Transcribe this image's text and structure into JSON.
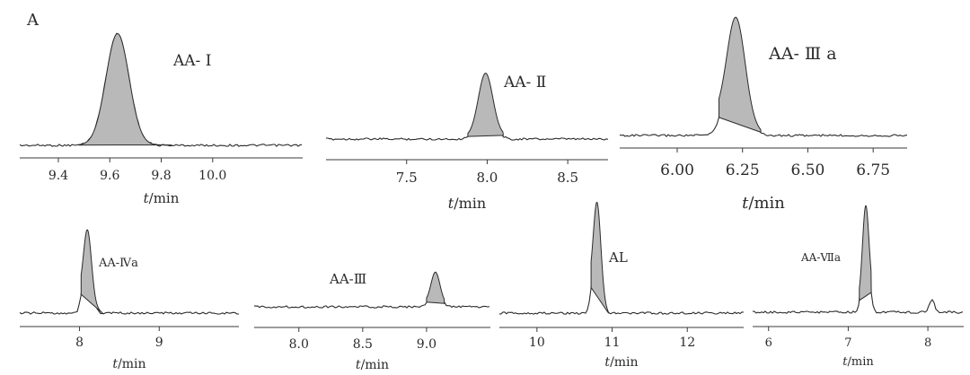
{
  "figure_label": "A",
  "colors": {
    "peak_fill": "#b9b9b9",
    "line": "#2b2b2b",
    "text": "#2a2a2a"
  },
  "chart_data": [
    {
      "type": "line",
      "id": "p1",
      "annotation": "AA- Ⅰ",
      "xlabel_italic": "t",
      "xlabel_unit": "/min",
      "xlim": [
        9.25,
        10.35
      ],
      "ticks": [
        9.4,
        9.6,
        9.8,
        10.0
      ],
      "tick_labels": [
        "9.4",
        "9.6",
        "9.8",
        "10.0"
      ],
      "peak": {
        "center": 9.63,
        "height": 0.97,
        "width": 0.045,
        "shaded_range": [
          9.48,
          9.84
        ]
      }
    },
    {
      "type": "line",
      "id": "p2",
      "annotation": "AA- Ⅱ",
      "xlabel_italic": "t",
      "xlabel_unit": "/min",
      "xlim": [
        7.0,
        8.75
      ],
      "ticks": [
        7.5,
        8.0,
        8.5
      ],
      "tick_labels": [
        "7.5",
        "8.0",
        "8.5"
      ],
      "peak": {
        "center": 7.99,
        "height": 0.92,
        "width": 0.045,
        "shaded_range": [
          7.88,
          8.1
        ]
      }
    },
    {
      "type": "line",
      "id": "p3",
      "annotation": "AA- Ⅲ a",
      "xlabel_italic": "t",
      "xlabel_unit": "/min",
      "xlim": [
        5.78,
        6.88
      ],
      "ticks": [
        6.0,
        6.25,
        6.5,
        6.75
      ],
      "tick_labels": [
        "6.00",
        "6.25",
        "6.50",
        "6.75"
      ],
      "peak": {
        "center": 6.225,
        "height": 0.97,
        "width": 0.035,
        "shaded_range": [
          6.16,
          6.32
        ]
      }
    },
    {
      "type": "line",
      "id": "p4",
      "annotation": "AA-Ⅳa",
      "xlabel_italic": "t",
      "xlabel_unit": "/min",
      "xlim": [
        7.25,
        10.0
      ],
      "ticks": [
        8,
        9
      ],
      "tick_labels": [
        "8",
        "9"
      ],
      "peak": {
        "center": 8.1,
        "height": 0.92,
        "width": 0.05,
        "shaded_range": [
          8.02,
          8.3
        ]
      }
    },
    {
      "type": "line",
      "id": "p5",
      "annotation": "AA-Ⅲ",
      "xlabel_italic": "t",
      "xlabel_unit": "/min",
      "xlim": [
        7.65,
        9.5
      ],
      "ticks": [
        8.0,
        8.5,
        9.0
      ],
      "tick_labels": [
        "8.0",
        "8.5",
        "9.0"
      ],
      "peak": {
        "center": 9.07,
        "height": 0.95,
        "width": 0.035,
        "shaded_range": [
          9.0,
          9.14
        ]
      }
    },
    {
      "type": "line",
      "id": "p6",
      "annotation": "AL",
      "xlabel_italic": "t",
      "xlabel_unit": "/min",
      "xlim": [
        9.5,
        12.75
      ],
      "ticks": [
        10,
        11,
        12
      ],
      "tick_labels": [
        "10",
        "11",
        "12"
      ],
      "peak": {
        "center": 10.8,
        "height": 0.97,
        "width": 0.05,
        "shaded_range": [
          10.72,
          10.95
        ]
      }
    },
    {
      "type": "line",
      "id": "p7",
      "annotation": "AA-Ⅶa",
      "xlabel_italic": "t",
      "xlabel_unit": "/min",
      "xlim": [
        5.8,
        8.45
      ],
      "ticks": [
        6,
        7,
        8
      ],
      "tick_labels": [
        "6",
        "7",
        "8"
      ],
      "peak": {
        "center": 7.22,
        "height": 0.97,
        "width": 0.04,
        "shaded_range": [
          7.14,
          7.29
        ]
      },
      "minor_peaks": [
        {
          "center": 8.05,
          "height": 0.14,
          "width": 0.03
        }
      ]
    }
  ]
}
